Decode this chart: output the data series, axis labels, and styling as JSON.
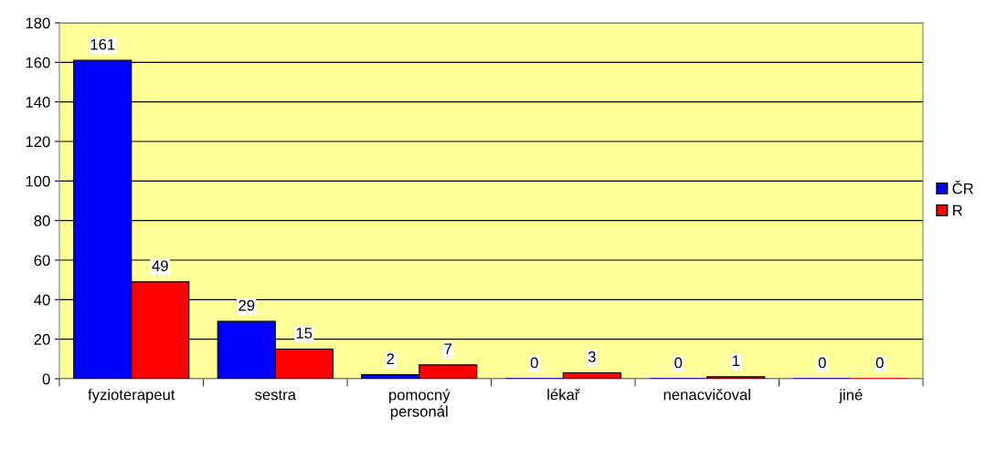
{
  "chart_data": {
    "type": "bar",
    "categories": [
      "fyzioterapeut",
      "sestra",
      "pomocný\npersonál",
      "lékař",
      "nenacvičoval",
      "jiné"
    ],
    "series": [
      {
        "name": "ČR",
        "color": "#0000ff",
        "values": [
          161,
          29,
          2,
          0,
          0,
          0
        ]
      },
      {
        "name": "R",
        "color": "#ff0000",
        "values": [
          49,
          15,
          7,
          3,
          1,
          0
        ]
      }
    ],
    "ylim": [
      0,
      180
    ],
    "yticks": [
      0,
      20,
      40,
      60,
      80,
      100,
      120,
      140,
      160,
      180
    ],
    "grid": "y",
    "legend": "right",
    "data_labels": true
  }
}
